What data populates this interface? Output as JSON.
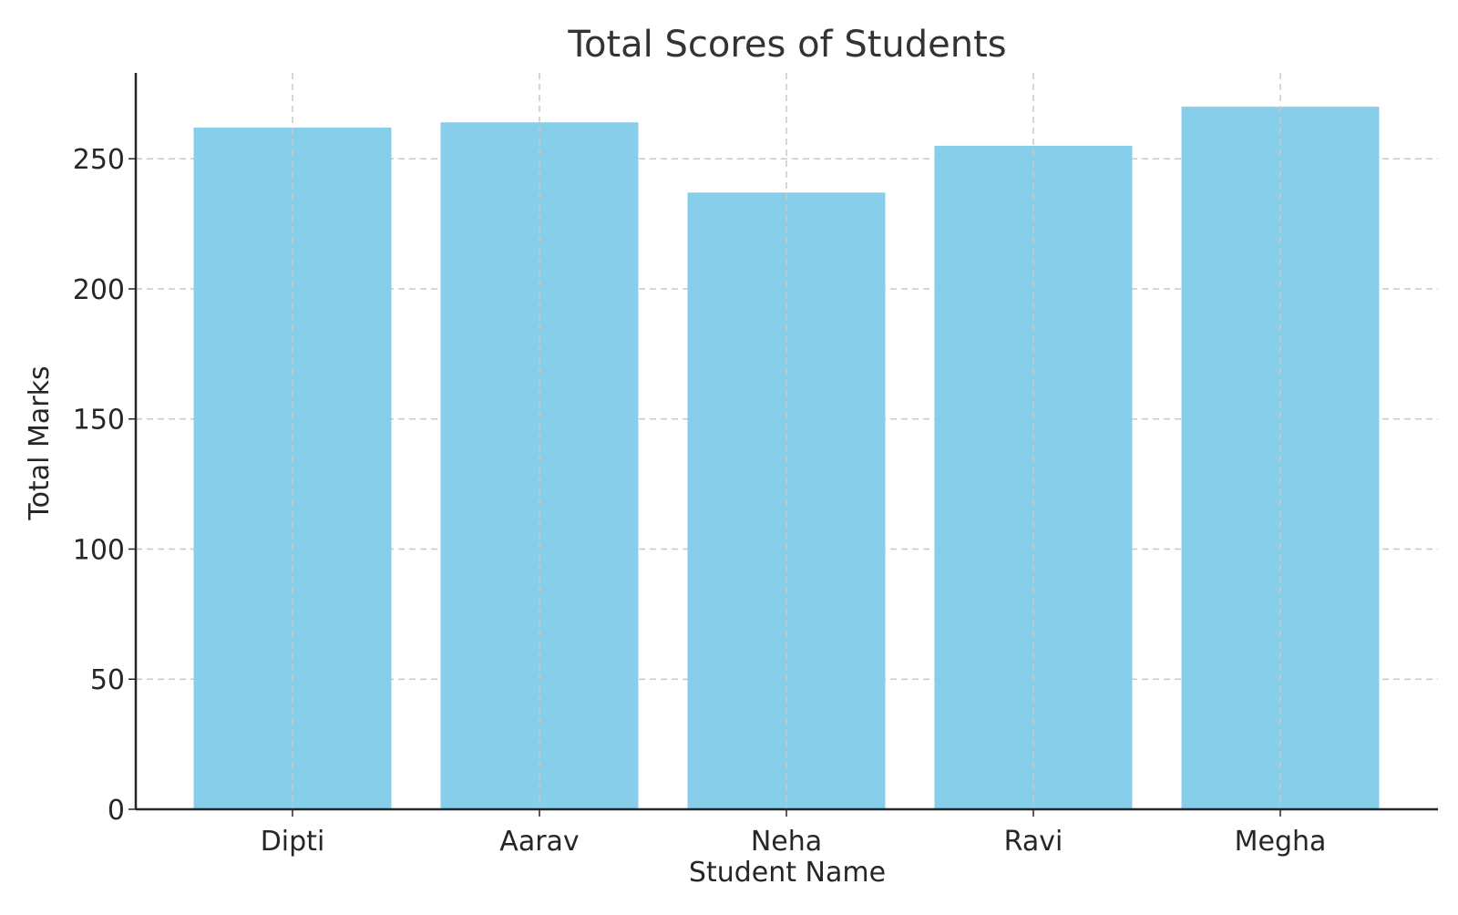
{
  "chart_data": {
    "type": "bar",
    "title": "Total Scores of Students",
    "xlabel": "Student Name",
    "ylabel": "Total Marks",
    "categories": [
      "Dipti",
      "Aarav",
      "Neha",
      "Ravi",
      "Megha"
    ],
    "values": [
      262,
      264,
      237,
      255,
      270
    ],
    "ylim": [
      0,
      283
    ],
    "yticks": [
      0,
      50,
      100,
      150,
      200,
      250
    ],
    "grid": true,
    "bar_color": "#87CEEB"
  }
}
